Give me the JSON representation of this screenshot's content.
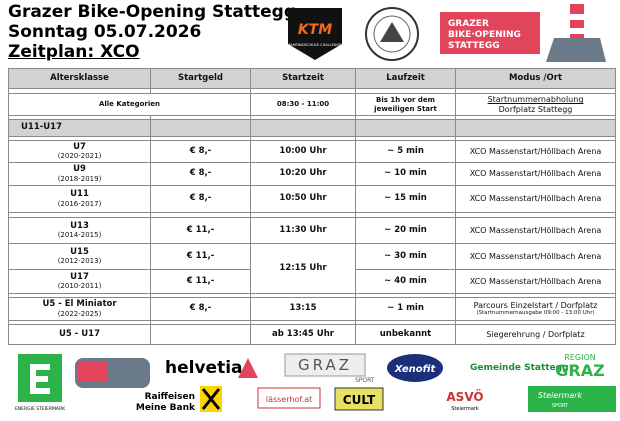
{
  "header": {
    "title": "Grazer Bike-Opening Stattegg",
    "date": "Sonntag 05.07.2026",
    "schedule": "Zeitplan: XCO"
  },
  "logos": {
    "ktm": "KTM",
    "ktm_sub": "FAHRRADSCHULE CHALLENGE",
    "opening": [
      "GRAZER",
      "BIKE·OPENING",
      "STATTEGG"
    ]
  },
  "table": {
    "columns": [
      "Altersklasse",
      "Startgeld",
      "Startzeit",
      "Laufzeit",
      "Modus /Ort"
    ],
    "general": {
      "label": "Alle Kategorien",
      "time": "08:30 - 11:00",
      "duration": "Bis 1h vor dem jeweiligen Start",
      "mode": "Startnummernabholung",
      "place": "Dorfplatz Stattegg"
    },
    "group": "U11-U17",
    "rows": [
      {
        "class": "U7",
        "years": "(2020-2021)",
        "fee": "€ 8,-",
        "time": "10:00 Uhr",
        "duration": "~ 5 min",
        "mode": "XCO Massenstart/Höllbach Arena"
      },
      {
        "class": "U9",
        "years": "(2018-2019)",
        "fee": "€ 8,-",
        "time": "10:20 Uhr",
        "duration": "~ 10 min",
        "mode": "XCO Massenstart/Höllbach Arena"
      },
      {
        "class": "U11",
        "years": "(2016-2017)",
        "fee": "€ 8,-",
        "time": "10:50 Uhr",
        "duration": "~ 15 min",
        "mode": "XCO Massenstart/Höllbach Arena"
      },
      {
        "class": "U13",
        "years": "(2014-2015)",
        "fee": "€ 11,-",
        "time": "11:30 Uhr",
        "duration": "~ 20 min",
        "mode": "XCO Massenstart/Höllbach Arena"
      },
      {
        "class": "U15",
        "years": "(2012-2013)",
        "fee": "€ 11,-",
        "time": "12:15 Uhr",
        "duration": "~ 30 min",
        "mode": "XCO Massenstart/Höllbach Arena"
      },
      {
        "class": "U17",
        "years": "(2010-2011)",
        "fee": "€ 11,-",
        "duration": "~ 40 min",
        "mode": "XCO Massenstart/Höllbach Arena"
      },
      {
        "class": "U5 - El Miniator",
        "years": "(2022-2025)",
        "fee": "€ 8,-",
        "time": "13:15",
        "duration": "~ 1 min",
        "mode": "Parcours Einzelstart / Dorfplatz",
        "mode_note": "(Startnummernausgabe 09:00 - 13:00 Uhr)"
      },
      {
        "class": "U5 - U17",
        "time": "ab 13:45 Uhr",
        "duration": "unbekannt",
        "mode": "Siegerehrung / Dorfplatz"
      }
    ]
  },
  "sponsors": [
    "ENERGIE STEIERMARK",
    "helvetia",
    "GRAZ",
    "SPORT",
    "Xenofit",
    "Gemeinde Stattegg",
    "REGION",
    "GRAZ",
    "Raiffeisen",
    "Meine Bank",
    "lässerhof.at",
    "CULT",
    "ASVÖ",
    "Steiermark",
    "Steiermark",
    "SPORT"
  ]
}
